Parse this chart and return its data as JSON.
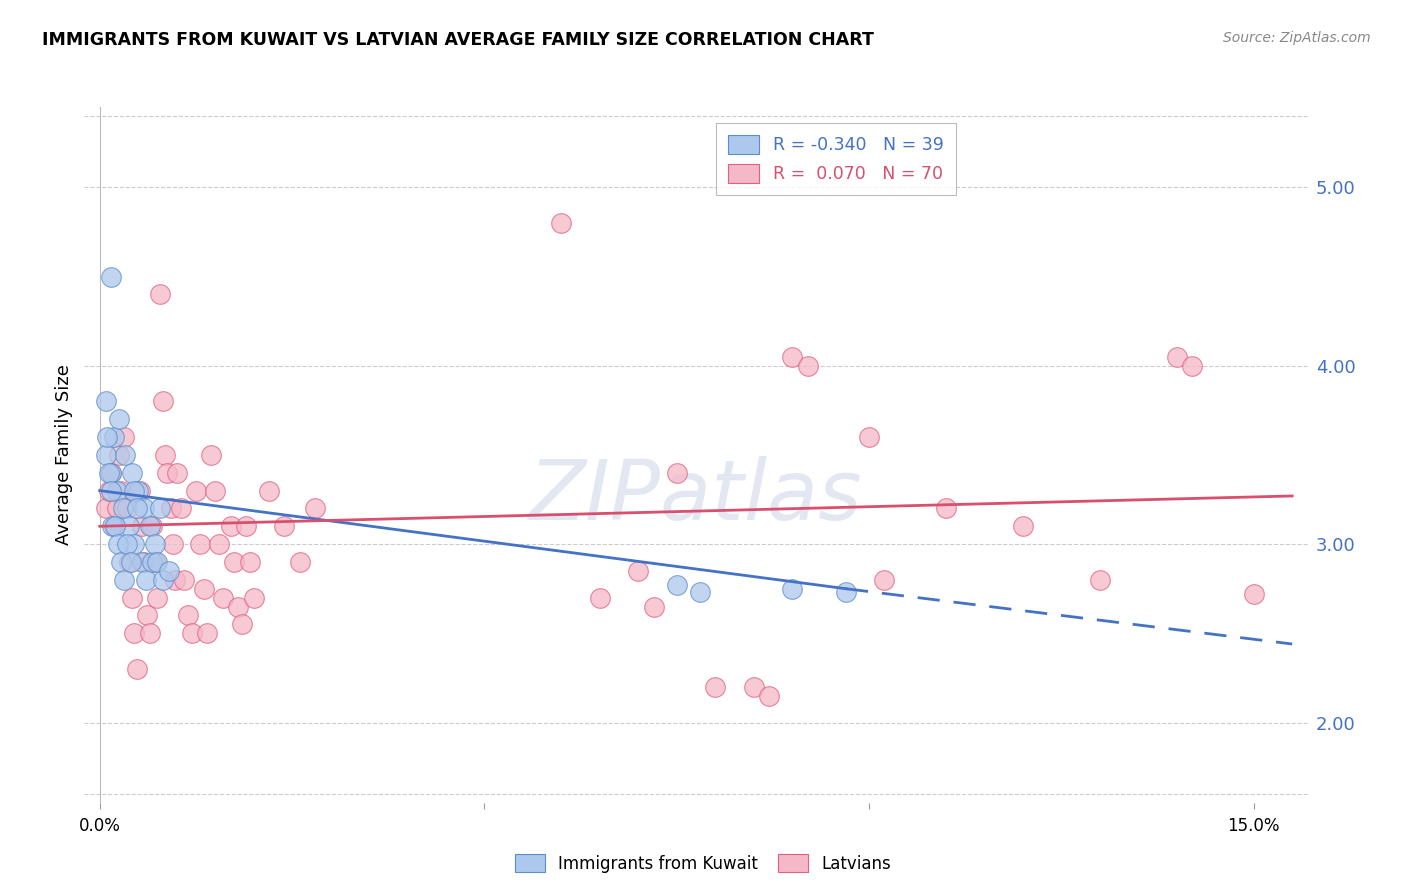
{
  "title": "IMMIGRANTS FROM KUWAIT VS LATVIAN AVERAGE FAMILY SIZE CORRELATION CHART",
  "source": "Source: ZipAtlas.com",
  "ylabel": "Average Family Size",
  "right_yticks": [
    2.0,
    3.0,
    4.0,
    5.0
  ],
  "xlim": [
    -0.002,
    0.157
  ],
  "ylim": [
    1.55,
    5.45
  ],
  "blue_scatter_color": "#adc8ed",
  "blue_scatter_edge": "#5b8dc8",
  "pink_scatter_color": "#f5b8c8",
  "pink_scatter_edge": "#e06080",
  "blue_line_color": "#4472c4",
  "pink_line_color": "#d94f6e",
  "watermark_text": "ZIPatlas",
  "blue_line_solid": [
    [
      0.0,
      3.3
    ],
    [
      0.097,
      2.75
    ]
  ],
  "blue_line_dashed": [
    [
      0.097,
      2.75
    ],
    [
      0.155,
      2.44
    ]
  ],
  "pink_line": [
    [
      0.0,
      3.1
    ],
    [
      0.155,
      3.27
    ]
  ],
  "kuwait_points": [
    [
      0.0008,
      3.5
    ],
    [
      0.0015,
      3.4
    ],
    [
      0.0018,
      3.6
    ],
    [
      0.0022,
      3.3
    ],
    [
      0.0025,
      3.7
    ],
    [
      0.003,
      3.2
    ],
    [
      0.0033,
      3.5
    ],
    [
      0.0038,
      3.1
    ],
    [
      0.0042,
      3.4
    ],
    [
      0.0045,
      3.0
    ],
    [
      0.005,
      3.3
    ],
    [
      0.0055,
      2.9
    ],
    [
      0.0058,
      3.2
    ],
    [
      0.006,
      2.8
    ],
    [
      0.0065,
      3.1
    ],
    [
      0.0068,
      2.9
    ],
    [
      0.0072,
      3.0
    ],
    [
      0.0075,
      2.9
    ],
    [
      0.0078,
      3.2
    ],
    [
      0.0082,
      2.8
    ],
    [
      0.0015,
      4.5
    ],
    [
      0.009,
      2.85
    ],
    [
      0.0008,
      3.8
    ],
    [
      0.001,
      3.6
    ],
    [
      0.0012,
      3.4
    ],
    [
      0.0014,
      3.3
    ],
    [
      0.0016,
      3.1
    ],
    [
      0.002,
      3.1
    ],
    [
      0.0024,
      3.0
    ],
    [
      0.0028,
      2.9
    ],
    [
      0.0032,
      2.8
    ],
    [
      0.0036,
      3.0
    ],
    [
      0.004,
      2.9
    ],
    [
      0.0044,
      3.3
    ],
    [
      0.0048,
      3.2
    ],
    [
      0.075,
      2.77
    ],
    [
      0.078,
      2.73
    ],
    [
      0.09,
      2.75
    ],
    [
      0.097,
      2.73
    ]
  ],
  "latvian_points": [
    [
      0.0008,
      3.2
    ],
    [
      0.0012,
      3.3
    ],
    [
      0.0015,
      3.4
    ],
    [
      0.0018,
      3.1
    ],
    [
      0.0022,
      3.2
    ],
    [
      0.0025,
      3.5
    ],
    [
      0.0028,
      3.3
    ],
    [
      0.0032,
      3.6
    ],
    [
      0.0035,
      3.2
    ],
    [
      0.0038,
      2.9
    ],
    [
      0.0042,
      2.7
    ],
    [
      0.0045,
      2.5
    ],
    [
      0.0048,
      2.3
    ],
    [
      0.0052,
      3.3
    ],
    [
      0.0055,
      3.1
    ],
    [
      0.0058,
      2.9
    ],
    [
      0.0062,
      2.6
    ],
    [
      0.0065,
      2.5
    ],
    [
      0.0068,
      3.1
    ],
    [
      0.0072,
      2.9
    ],
    [
      0.0075,
      2.7
    ],
    [
      0.0078,
      4.4
    ],
    [
      0.0082,
      3.8
    ],
    [
      0.0085,
      3.5
    ],
    [
      0.0088,
      3.4
    ],
    [
      0.0092,
      3.2
    ],
    [
      0.0095,
      3.0
    ],
    [
      0.0098,
      2.8
    ],
    [
      0.01,
      3.4
    ],
    [
      0.0105,
      3.2
    ],
    [
      0.011,
      2.8
    ],
    [
      0.0115,
      2.6
    ],
    [
      0.012,
      2.5
    ],
    [
      0.0125,
      3.3
    ],
    [
      0.013,
      3.0
    ],
    [
      0.0135,
      2.75
    ],
    [
      0.014,
      2.5
    ],
    [
      0.0145,
      3.5
    ],
    [
      0.015,
      3.3
    ],
    [
      0.0155,
      3.0
    ],
    [
      0.016,
      2.7
    ],
    [
      0.017,
      3.1
    ],
    [
      0.0175,
      2.9
    ],
    [
      0.018,
      2.65
    ],
    [
      0.0185,
      2.55
    ],
    [
      0.019,
      3.1
    ],
    [
      0.0195,
      2.9
    ],
    [
      0.02,
      2.7
    ],
    [
      0.06,
      4.8
    ],
    [
      0.065,
      2.7
    ],
    [
      0.07,
      2.85
    ],
    [
      0.072,
      2.65
    ],
    [
      0.075,
      3.4
    ],
    [
      0.08,
      2.2
    ],
    [
      0.085,
      2.2
    ],
    [
      0.087,
      2.15
    ],
    [
      0.09,
      4.05
    ],
    [
      0.092,
      4.0
    ],
    [
      0.1,
      3.6
    ],
    [
      0.102,
      2.8
    ],
    [
      0.11,
      3.2
    ],
    [
      0.12,
      3.1
    ],
    [
      0.13,
      2.8
    ],
    [
      0.14,
      4.05
    ],
    [
      0.142,
      4.0
    ],
    [
      0.15,
      2.72
    ],
    [
      0.022,
      3.3
    ],
    [
      0.024,
      3.1
    ],
    [
      0.026,
      2.9
    ],
    [
      0.028,
      3.2
    ]
  ]
}
